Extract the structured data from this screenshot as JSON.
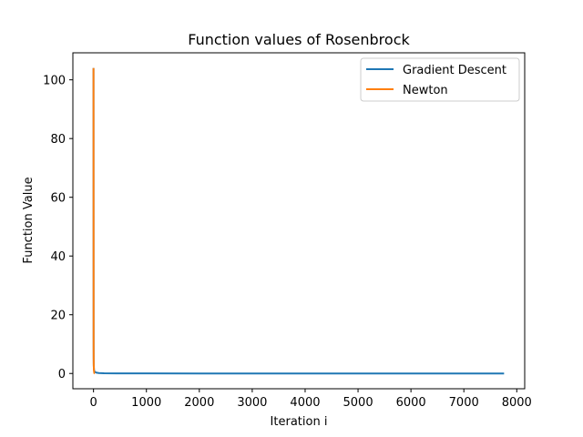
{
  "chart_data": {
    "type": "line",
    "title": "Function values of Rosenbrock",
    "xlabel": "Iteration i",
    "ylabel": "Function Value",
    "xlim": [
      -390,
      8150
    ],
    "ylim": [
      -5.2,
      109.2
    ],
    "xticks": [
      0,
      1000,
      2000,
      3000,
      4000,
      5000,
      6000,
      7000,
      8000
    ],
    "yticks": [
      0,
      20,
      40,
      60,
      80,
      100
    ],
    "grid": false,
    "legend_position": "top-right",
    "series": [
      {
        "name": "Gradient Descent",
        "color": "#1f77b4",
        "x": [
          0,
          1,
          2,
          3,
          5,
          10,
          20,
          50,
          100,
          200,
          500,
          1000,
          2000,
          3000,
          4000,
          5000,
          6000,
          7000,
          7760
        ],
        "y": [
          104,
          40,
          12,
          5,
          2.5,
          1.2,
          0.6,
          0.3,
          0.15,
          0.08,
          0.04,
          0.02,
          0.01,
          0.005,
          0.003,
          0.002,
          0.001,
          0.0005,
          0.0001
        ]
      },
      {
        "name": "Newton",
        "color": "#ff7f0e",
        "x": [
          0,
          1,
          2,
          4,
          8,
          15,
          25
        ],
        "y": [
          104,
          60,
          8,
          3,
          1,
          0.1,
          0
        ]
      }
    ]
  }
}
